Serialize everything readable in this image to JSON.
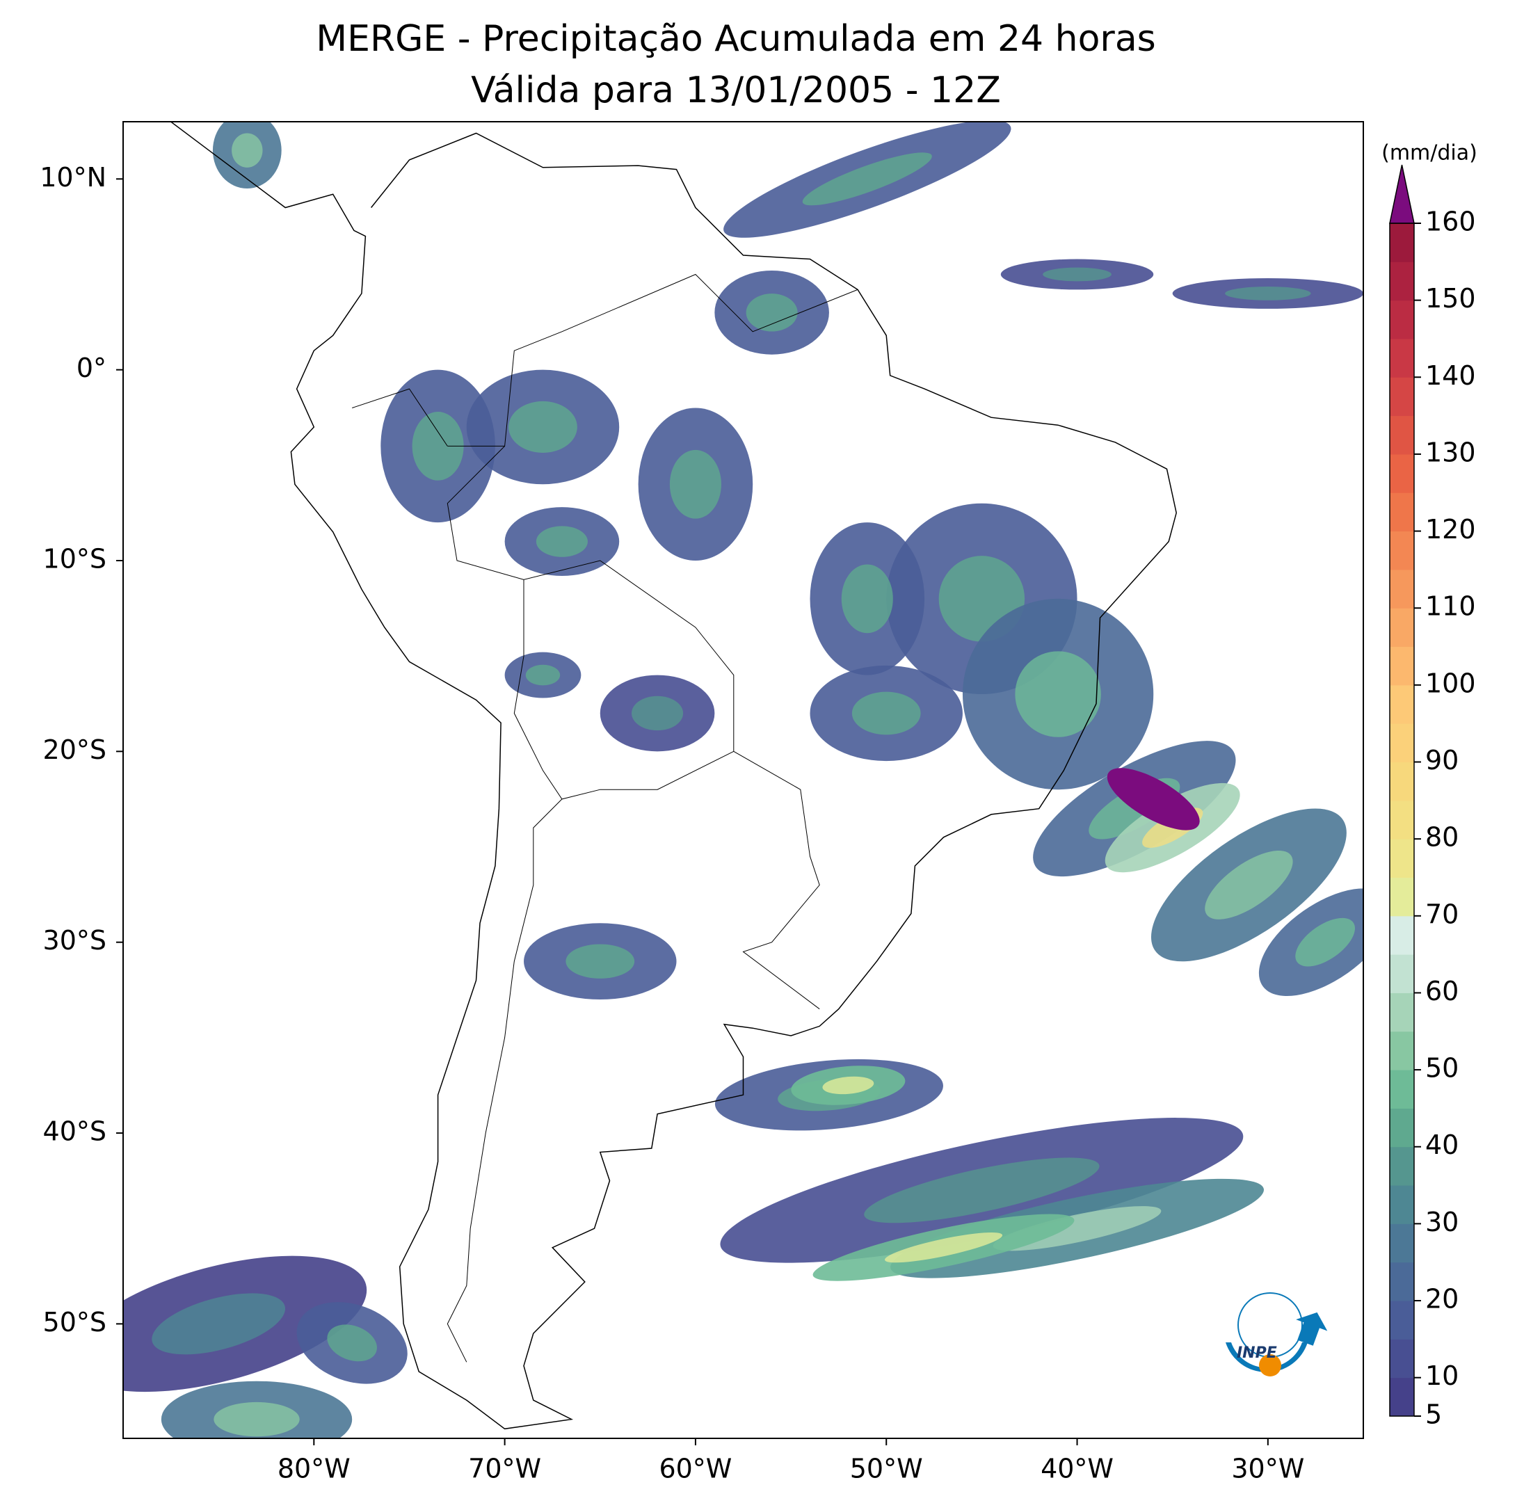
{
  "map": {
    "title": "MERGE - Precipitação Acumulada em 24 horas",
    "subtitle": "Válida para 13/01/2005 - 12Z",
    "xlim": [
      -90,
      -25
    ],
    "ylim": [
      -56,
      13
    ],
    "xticks": [
      {
        "value": -80,
        "label": "80°W"
      },
      {
        "value": -70,
        "label": "70°W"
      },
      {
        "value": -60,
        "label": "60°W"
      },
      {
        "value": -50,
        "label": "50°W"
      },
      {
        "value": -40,
        "label": "40°W"
      },
      {
        "value": -30,
        "label": "30°W"
      }
    ],
    "yticks": [
      {
        "value": 10,
        "label": "10°N"
      },
      {
        "value": 0,
        "label": "0°"
      },
      {
        "value": -10,
        "label": "10°S"
      },
      {
        "value": -20,
        "label": "20°S"
      },
      {
        "value": -30,
        "label": "30°S"
      },
      {
        "value": -40,
        "label": "40°S"
      },
      {
        "value": -50,
        "label": "50°S"
      }
    ],
    "colorbar": {
      "unit": "(mm/dia)",
      "levels": [
        5,
        10,
        15,
        20,
        25,
        30,
        35,
        40,
        45,
        50,
        55,
        60,
        65,
        70,
        75,
        80,
        85,
        90,
        95,
        100,
        105,
        110,
        115,
        120,
        125,
        130,
        135,
        140,
        145,
        150,
        155,
        160
      ],
      "colors": [
        "#45418a",
        "#484f92",
        "#4a5d98",
        "#4b6a98",
        "#4c7896",
        "#4e8793",
        "#55968f",
        "#5fa98f",
        "#6ebb97",
        "#88c7a2",
        "#a6d4b8",
        "#c2e2d2",
        "#d8ede6",
        "#e4ec9a",
        "#eee58a",
        "#f3df82",
        "#f7d87c",
        "#fbd17a",
        "#fdc977",
        "#fcb86e",
        "#f9a865",
        "#f6985c",
        "#f38753",
        "#ef764a",
        "#ea6445",
        "#e05544",
        "#d54645",
        "#c93845",
        "#bb2c43",
        "#ac2240",
        "#9c1a3c"
      ],
      "over_color": "#7b0c7e",
      "ticks": [
        5,
        10,
        20,
        30,
        40,
        50,
        60,
        70,
        80,
        90,
        100,
        110,
        120,
        130,
        140,
        150,
        160
      ]
    },
    "logo_text": "INPE"
  }
}
